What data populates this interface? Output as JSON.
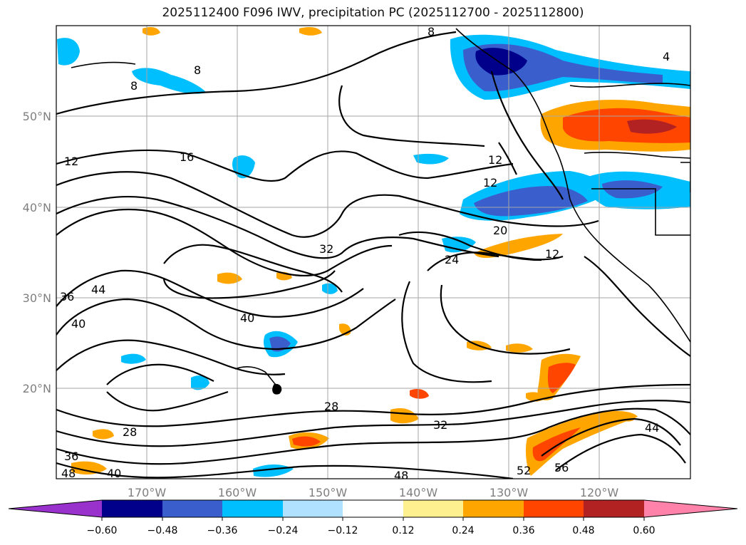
{
  "title": "2025112400 F096 IWV, precipitation PC (2025112700 - 2025112800)",
  "lat_labels": [
    "50°N",
    "40°N",
    "30°N",
    "20°N"
  ],
  "lon_labels": [
    "170°W",
    "160°W",
    "150°W",
    "140°W",
    "130°W",
    "120°W"
  ],
  "contour_labels": [
    "8",
    "8",
    "8",
    "4",
    "12",
    "16",
    "12",
    "12",
    "12",
    "20",
    "24",
    "32",
    "44",
    "36",
    "40",
    "40",
    "28",
    "28",
    "32",
    "36",
    "48",
    "40",
    "48",
    "52",
    "56",
    "44"
  ],
  "colorbar": {
    "tick_labels": [
      "−0.60",
      "−0.48",
      "−0.36",
      "−0.24",
      "−0.12",
      "0.12",
      "0.24",
      "0.36",
      "0.48",
      "0.60"
    ],
    "colors": [
      "#9932cc",
      "#00008b",
      "#3a5fcd",
      "#00bfff",
      "#b0e2ff",
      "#ffffff",
      "#fff08f",
      "#ffa500",
      "#ff4500",
      "#b22222",
      "#ff82ab"
    ]
  }
}
